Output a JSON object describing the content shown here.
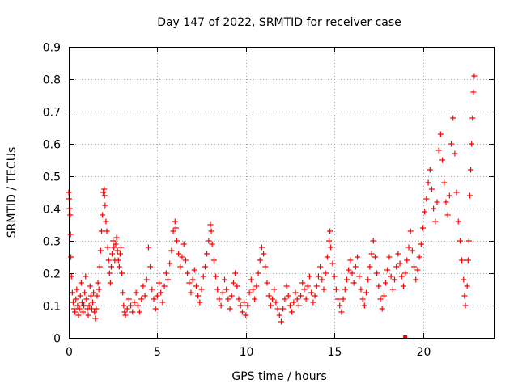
{
  "chart_data": {
    "type": "scatter",
    "title": "Day 147 of 2022, SRMTID for receiver case",
    "xlabel": "GPS time / hours",
    "ylabel": "SRMTID / TECUs",
    "xlim": [
      0,
      24
    ],
    "ylim": [
      0,
      0.9
    ],
    "xticks": [
      0,
      5,
      10,
      15,
      20
    ],
    "xtick_labels": [
      "0",
      "5",
      "10",
      "15",
      "20"
    ],
    "yticks": [
      0,
      0.1,
      0.2,
      0.3,
      0.4,
      0.5,
      0.6,
      0.7,
      0.8,
      0.9
    ],
    "ytick_labels": [
      "0",
      "0.1",
      "0.2",
      "0.3",
      "0.4",
      "0.5",
      "0.6",
      "0.7",
      "0.8",
      "0.9"
    ],
    "grid": true,
    "marker_color": "#ff0000",
    "marker": "plus",
    "series": [
      {
        "name": "SRMTID",
        "points": [
          [
            0.0,
            0.45
          ],
          [
            0.02,
            0.43
          ],
          [
            0.05,
            0.4
          ],
          [
            0.08,
            0.38
          ],
          [
            0.1,
            0.32
          ],
          [
            0.12,
            0.25
          ],
          [
            0.15,
            0.19
          ],
          [
            0.2,
            0.14
          ],
          [
            0.25,
            0.11
          ],
          [
            0.3,
            0.09
          ],
          [
            0.35,
            0.08
          ],
          [
            0.4,
            0.12
          ],
          [
            0.45,
            0.15
          ],
          [
            0.5,
            0.1
          ],
          [
            0.55,
            0.07
          ],
          [
            0.6,
            0.09
          ],
          [
            0.65,
            0.13
          ],
          [
            0.7,
            0.17
          ],
          [
            0.75,
            0.11
          ],
          [
            0.8,
            0.08
          ],
          [
            0.85,
            0.1
          ],
          [
            0.9,
            0.14
          ],
          [
            0.95,
            0.19
          ],
          [
            1.0,
            0.12
          ],
          [
            1.05,
            0.09
          ],
          [
            1.1,
            0.07
          ],
          [
            1.15,
            0.1
          ],
          [
            1.2,
            0.16
          ],
          [
            1.25,
            0.13
          ],
          [
            1.3,
            0.09
          ],
          [
            1.35,
            0.11
          ],
          [
            1.4,
            0.14
          ],
          [
            1.45,
            0.08
          ],
          [
            1.5,
            0.06
          ],
          [
            1.55,
            0.09
          ],
          [
            1.6,
            0.13
          ],
          [
            1.65,
            0.17
          ],
          [
            1.7,
            0.15
          ],
          [
            1.75,
            0.22
          ],
          [
            1.8,
            0.27
          ],
          [
            1.85,
            0.33
          ],
          [
            1.9,
            0.38
          ],
          [
            1.95,
            0.45
          ],
          [
            2.0,
            0.46
          ],
          [
            2.02,
            0.44
          ],
          [
            2.05,
            0.41
          ],
          [
            2.1,
            0.36
          ],
          [
            2.15,
            0.33
          ],
          [
            2.2,
            0.28
          ],
          [
            2.25,
            0.24
          ],
          [
            2.3,
            0.2
          ],
          [
            2.35,
            0.17
          ],
          [
            2.4,
            0.22
          ],
          [
            2.45,
            0.26
          ],
          [
            2.5,
            0.3
          ],
          [
            2.55,
            0.28
          ],
          [
            2.6,
            0.24
          ],
          [
            2.65,
            0.29
          ],
          [
            2.7,
            0.31
          ],
          [
            2.75,
            0.27
          ],
          [
            2.8,
            0.24
          ],
          [
            2.85,
            0.22
          ],
          [
            2.9,
            0.26
          ],
          [
            2.95,
            0.28
          ],
          [
            3.0,
            0.2
          ],
          [
            3.05,
            0.14
          ],
          [
            3.1,
            0.1
          ],
          [
            3.15,
            0.08
          ],
          [
            3.2,
            0.07
          ],
          [
            3.3,
            0.09
          ],
          [
            3.4,
            0.12
          ],
          [
            3.5,
            0.1
          ],
          [
            3.6,
            0.08
          ],
          [
            3.7,
            0.11
          ],
          [
            3.8,
            0.14
          ],
          [
            3.9,
            0.1
          ],
          [
            4.0,
            0.08
          ],
          [
            4.1,
            0.12
          ],
          [
            4.2,
            0.16
          ],
          [
            4.3,
            0.13
          ],
          [
            4.4,
            0.18
          ],
          [
            4.5,
            0.28
          ],
          [
            4.6,
            0.22
          ],
          [
            4.7,
            0.15
          ],
          [
            4.8,
            0.12
          ],
          [
            4.9,
            0.09
          ],
          [
            5.0,
            0.13
          ],
          [
            5.1,
            0.17
          ],
          [
            5.2,
            0.14
          ],
          [
            5.3,
            0.11
          ],
          [
            5.4,
            0.16
          ],
          [
            5.5,
            0.2
          ],
          [
            5.6,
            0.18
          ],
          [
            5.7,
            0.23
          ],
          [
            5.8,
            0.27
          ],
          [
            5.9,
            0.33
          ],
          [
            6.0,
            0.36
          ],
          [
            6.05,
            0.34
          ],
          [
            6.1,
            0.3
          ],
          [
            6.2,
            0.26
          ],
          [
            6.3,
            0.22
          ],
          [
            6.4,
            0.25
          ],
          [
            6.5,
            0.29
          ],
          [
            6.6,
            0.24
          ],
          [
            6.7,
            0.2
          ],
          [
            6.8,
            0.17
          ],
          [
            6.9,
            0.14
          ],
          [
            7.0,
            0.18
          ],
          [
            7.1,
            0.21
          ],
          [
            7.2,
            0.16
          ],
          [
            7.3,
            0.13
          ],
          [
            7.4,
            0.11
          ],
          [
            7.5,
            0.15
          ],
          [
            7.6,
            0.19
          ],
          [
            7.7,
            0.22
          ],
          [
            7.8,
            0.26
          ],
          [
            7.9,
            0.3
          ],
          [
            8.0,
            0.35
          ],
          [
            8.05,
            0.33
          ],
          [
            8.1,
            0.29
          ],
          [
            8.2,
            0.24
          ],
          [
            8.3,
            0.19
          ],
          [
            8.4,
            0.15
          ],
          [
            8.5,
            0.12
          ],
          [
            8.6,
            0.1
          ],
          [
            8.7,
            0.14
          ],
          [
            8.8,
            0.18
          ],
          [
            8.9,
            0.15
          ],
          [
            9.0,
            0.12
          ],
          [
            9.1,
            0.09
          ],
          [
            9.2,
            0.13
          ],
          [
            9.3,
            0.17
          ],
          [
            9.4,
            0.2
          ],
          [
            9.5,
            0.16
          ],
          [
            9.6,
            0.12
          ],
          [
            9.7,
            0.1
          ],
          [
            9.8,
            0.08
          ],
          [
            9.9,
            0.11
          ],
          [
            10.0,
            0.07
          ],
          [
            10.1,
            0.1
          ],
          [
            10.2,
            0.14
          ],
          [
            10.3,
            0.18
          ],
          [
            10.4,
            0.15
          ],
          [
            10.5,
            0.12
          ],
          [
            10.6,
            0.16
          ],
          [
            10.7,
            0.2
          ],
          [
            10.8,
            0.24
          ],
          [
            10.9,
            0.28
          ],
          [
            11.0,
            0.26
          ],
          [
            11.1,
            0.22
          ],
          [
            11.2,
            0.17
          ],
          [
            11.3,
            0.13
          ],
          [
            11.4,
            0.1
          ],
          [
            11.5,
            0.12
          ],
          [
            11.6,
            0.15
          ],
          [
            11.7,
            0.11
          ],
          [
            11.8,
            0.09
          ],
          [
            11.9,
            0.07
          ],
          [
            12.0,
            0.05
          ],
          [
            12.1,
            0.09
          ],
          [
            12.2,
            0.12
          ],
          [
            12.3,
            0.16
          ],
          [
            12.4,
            0.13
          ],
          [
            12.5,
            0.1
          ],
          [
            12.6,
            0.08
          ],
          [
            12.7,
            0.11
          ],
          [
            12.8,
            0.14
          ],
          [
            12.9,
            0.12
          ],
          [
            13.0,
            0.1
          ],
          [
            13.1,
            0.13
          ],
          [
            13.2,
            0.17
          ],
          [
            13.3,
            0.15
          ],
          [
            13.4,
            0.12
          ],
          [
            13.5,
            0.16
          ],
          [
            13.6,
            0.19
          ],
          [
            13.7,
            0.14
          ],
          [
            13.8,
            0.11
          ],
          [
            13.9,
            0.13
          ],
          [
            14.0,
            0.16
          ],
          [
            14.1,
            0.19
          ],
          [
            14.2,
            0.22
          ],
          [
            14.3,
            0.18
          ],
          [
            14.4,
            0.15
          ],
          [
            14.5,
            0.2
          ],
          [
            14.6,
            0.25
          ],
          [
            14.7,
            0.3
          ],
          [
            14.75,
            0.33
          ],
          [
            14.8,
            0.28
          ],
          [
            14.9,
            0.23
          ],
          [
            15.0,
            0.19
          ],
          [
            15.1,
            0.15
          ],
          [
            15.2,
            0.12
          ],
          [
            15.3,
            0.1
          ],
          [
            15.4,
            0.08
          ],
          [
            15.5,
            0.12
          ],
          [
            15.6,
            0.15
          ],
          [
            15.7,
            0.18
          ],
          [
            15.8,
            0.21
          ],
          [
            15.9,
            0.24
          ],
          [
            16.0,
            0.2
          ],
          [
            16.1,
            0.17
          ],
          [
            16.2,
            0.22
          ],
          [
            16.3,
            0.25
          ],
          [
            16.4,
            0.19
          ],
          [
            16.5,
            0.15
          ],
          [
            16.6,
            0.12
          ],
          [
            16.7,
            0.1
          ],
          [
            16.8,
            0.14
          ],
          [
            16.9,
            0.18
          ],
          [
            17.0,
            0.22
          ],
          [
            17.1,
            0.26
          ],
          [
            17.2,
            0.3
          ],
          [
            17.3,
            0.25
          ],
          [
            17.4,
            0.2
          ],
          [
            17.5,
            0.16
          ],
          [
            17.6,
            0.12
          ],
          [
            17.7,
            0.09
          ],
          [
            17.8,
            0.13
          ],
          [
            17.9,
            0.17
          ],
          [
            18.0,
            0.21
          ],
          [
            18.1,
            0.25
          ],
          [
            18.2,
            0.19
          ],
          [
            18.3,
            0.15
          ],
          [
            18.4,
            0.18
          ],
          [
            18.5,
            0.22
          ],
          [
            18.6,
            0.26
          ],
          [
            18.7,
            0.23
          ],
          [
            18.8,
            0.19
          ],
          [
            18.9,
            0.16
          ],
          [
            19.0,
            0.2
          ],
          [
            19.1,
            0.24
          ],
          [
            19.2,
            0.28
          ],
          [
            19.3,
            0.33
          ],
          [
            19.4,
            0.27
          ],
          [
            19.5,
            0.22
          ],
          [
            19.6,
            0.18
          ],
          [
            19.7,
            0.21
          ],
          [
            19.8,
            0.25
          ],
          [
            19.9,
            0.29
          ],
          [
            20.0,
            0.34
          ],
          [
            20.1,
            0.39
          ],
          [
            20.2,
            0.43
          ],
          [
            20.3,
            0.48
          ],
          [
            20.4,
            0.52
          ],
          [
            20.5,
            0.46
          ],
          [
            20.6,
            0.4
          ],
          [
            20.7,
            0.36
          ],
          [
            20.8,
            0.42
          ],
          [
            20.9,
            0.58
          ],
          [
            21.0,
            0.63
          ],
          [
            21.1,
            0.55
          ],
          [
            21.2,
            0.48
          ],
          [
            21.3,
            0.42
          ],
          [
            21.4,
            0.38
          ],
          [
            21.5,
            0.44
          ],
          [
            21.6,
            0.6
          ],
          [
            21.7,
            0.68
          ],
          [
            21.8,
            0.57
          ],
          [
            21.9,
            0.45
          ],
          [
            22.0,
            0.36
          ],
          [
            22.1,
            0.3
          ],
          [
            22.2,
            0.24
          ],
          [
            22.3,
            0.18
          ],
          [
            22.35,
            0.13
          ],
          [
            22.4,
            0.1
          ],
          [
            22.5,
            0.16
          ],
          [
            22.55,
            0.24
          ],
          [
            22.6,
            0.3
          ],
          [
            22.65,
            0.44
          ],
          [
            22.7,
            0.52
          ],
          [
            22.75,
            0.6
          ],
          [
            22.8,
            0.68
          ],
          [
            22.85,
            0.76
          ],
          [
            22.9,
            0.81
          ]
        ]
      }
    ],
    "outlier_marker": {
      "x": 19.0,
      "y": 0.0
    }
  }
}
